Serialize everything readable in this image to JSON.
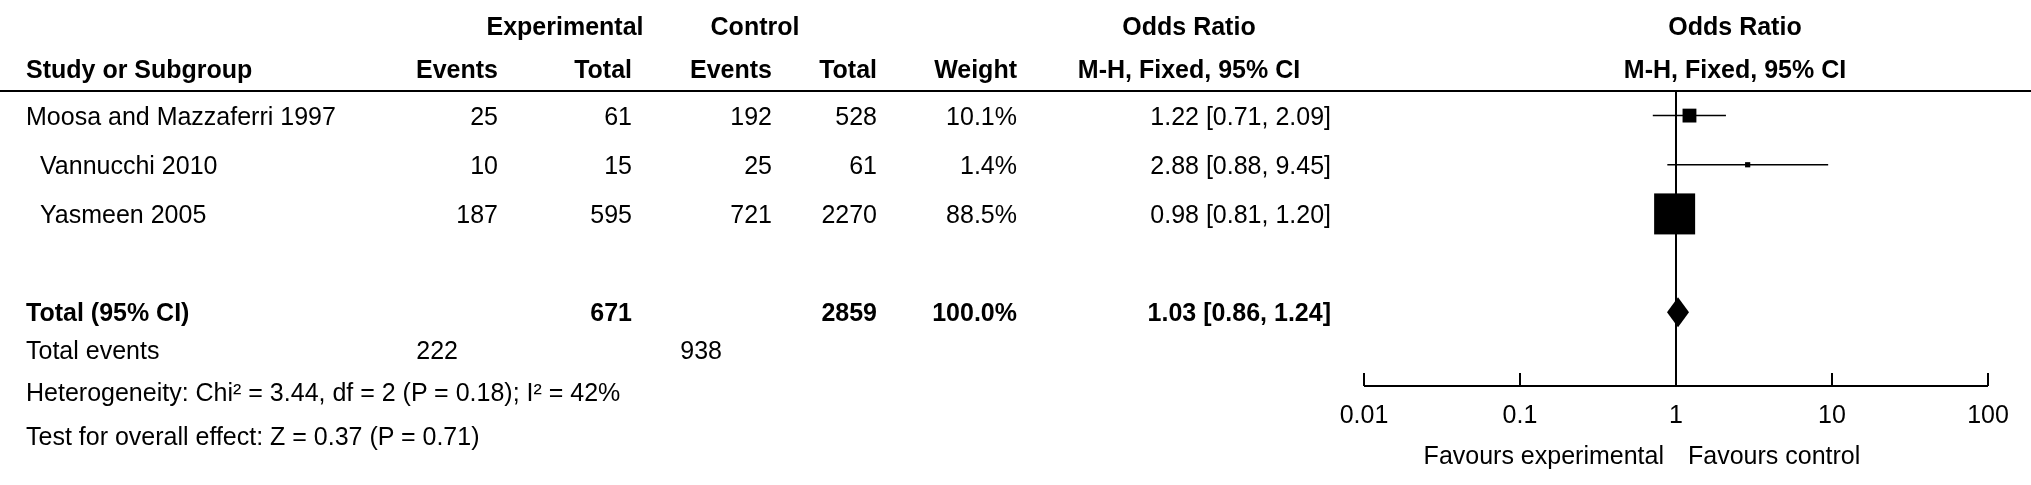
{
  "chart_data": [
    {
      "type": "other",
      "annotations": [
        "Experimental",
        "Control",
        "Odds Ratio",
        "Study or Subgroup",
        "Events",
        "Total",
        "Events",
        "Total",
        "Weight",
        "M-H, Fixed, 95% CI",
        "Moosa and Mazzaferri 1997",
        "25",
        "61",
        "192",
        "528",
        "10.1%",
        "1.22 [0.71, 2.09]",
        "Vannucchi 2010",
        "10",
        "15",
        "25",
        "61",
        "1.4%",
        "2.88 [0.88, 9.45]",
        "Yasmeen 2005",
        "187",
        "595",
        "721",
        "2270",
        "88.5%",
        "0.98 [0.81, 1.20]",
        "Total (95% CI)",
        "671",
        "2859",
        "100.0%",
        "1.03 [0.86, 1.24]",
        "Total events",
        "222",
        "938",
        "Heterogeneity: Chi² = 3.44, df = 2 (P = 0.18); I² = 42%",
        "Test for overall effect: Z = 0.37 (P = 0.71)"
      ]
    },
    {
      "type": "scatter",
      "orientation": "horizontal",
      "title": "Odds Ratio",
      "subtitle": "M-H, Fixed, 95% CI",
      "categories": [
        null,
        null,
        null,
        null,
        null,
        null
      ],
      "series": [
        {
          "color": "#000000",
          "marker": "square",
          "values": [
            1.22,
            2.88,
            0.98,
            null,
            null,
            null
          ],
          "errors": [
            [
              0.71,
              2.09
            ],
            [
              0.88,
              9.45
            ],
            null,
            null,
            null,
            null
          ],
          "sizes": [
            0.114,
            0.016,
            1,
            null,
            null,
            null
          ]
        },
        {
          "color": "#000000",
          "marker": "diamond",
          "values": [
            null,
            null,
            null,
            null,
            1.03,
            null
          ]
        }
      ],
      "log": "x",
      "xlim": [
        0.01,
        100
      ],
      "xticks": [
        0.01,
        0.1,
        1,
        10,
        100
      ],
      "tick_labels": "x",
      "ref_lines": [
        {
          "axis": "x",
          "value": 1,
          "color": "#000000"
        }
      ],
      "annotations": [
        "Favours experimental",
        "Favours control"
      ]
    }
  ]
}
